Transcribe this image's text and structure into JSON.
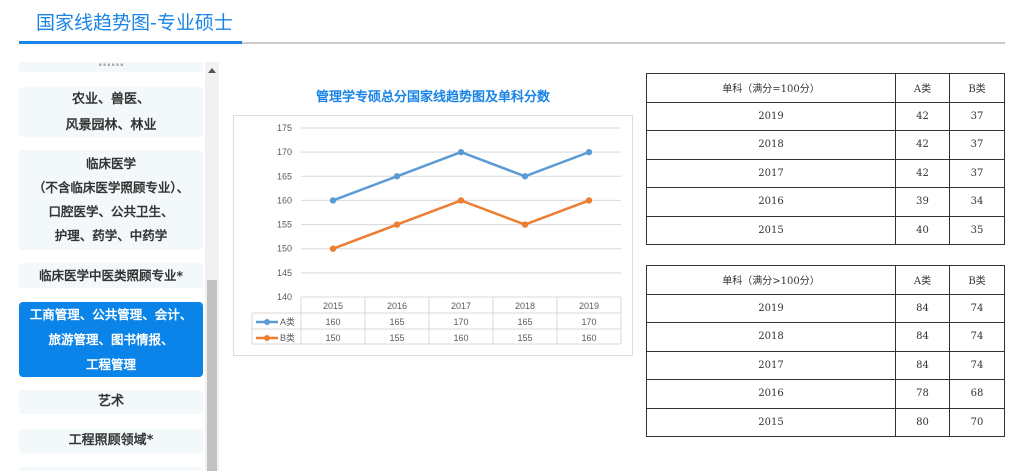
{
  "page_title": "国家线趋势图-专业硕士",
  "sidebar": {
    "items": [
      {
        "label": "……"
      },
      {
        "label": "农业、兽医、\n风景园林、林业"
      },
      {
        "label": "临床医学\n（不含临床医学照顾专业）、\n口腔医学、公共卫生、\n护理、药学、中药学"
      },
      {
        "label": "临床医学中医类照顾专业*"
      },
      {
        "label": "工商管理、公共管理、会计、\n旅游管理、图书情报、\n工程管理"
      },
      {
        "label": "艺术"
      },
      {
        "label": "工程照顾领域*"
      }
    ]
  },
  "chart_data": {
    "type": "line",
    "title": "管理学专硕总分国家线趋势图及单科分数",
    "categories": [
      "2015",
      "2016",
      "2017",
      "2018",
      "2019"
    ],
    "series": [
      {
        "name": "A类",
        "color": "#5b9bd5",
        "values": [
          160,
          165,
          170,
          165,
          170
        ]
      },
      {
        "name": "B类",
        "color": "#ed7d31",
        "values": [
          150,
          155,
          160,
          155,
          160
        ]
      }
    ],
    "ylim": [
      140,
      175
    ],
    "yticks": [
      140,
      145,
      150,
      155,
      160,
      165,
      170,
      175
    ],
    "grid": true,
    "legend": "data-table"
  },
  "tables": [
    {
      "headers": [
        "单科（满分=100分）",
        "A类",
        "B类"
      ],
      "rows": [
        [
          "2019",
          "42",
          "37"
        ],
        [
          "2018",
          "42",
          "37"
        ],
        [
          "2017",
          "42",
          "37"
        ],
        [
          "2016",
          "39",
          "34"
        ],
        [
          "2015",
          "40",
          "35"
        ]
      ]
    },
    {
      "headers": [
        "单科（满分>100分）",
        "A类",
        "B类"
      ],
      "rows": [
        [
          "2019",
          "84",
          "74"
        ],
        [
          "2018",
          "84",
          "74"
        ],
        [
          "2017",
          "84",
          "74"
        ],
        [
          "2016",
          "78",
          "68"
        ],
        [
          "2015",
          "80",
          "70"
        ]
      ]
    }
  ]
}
